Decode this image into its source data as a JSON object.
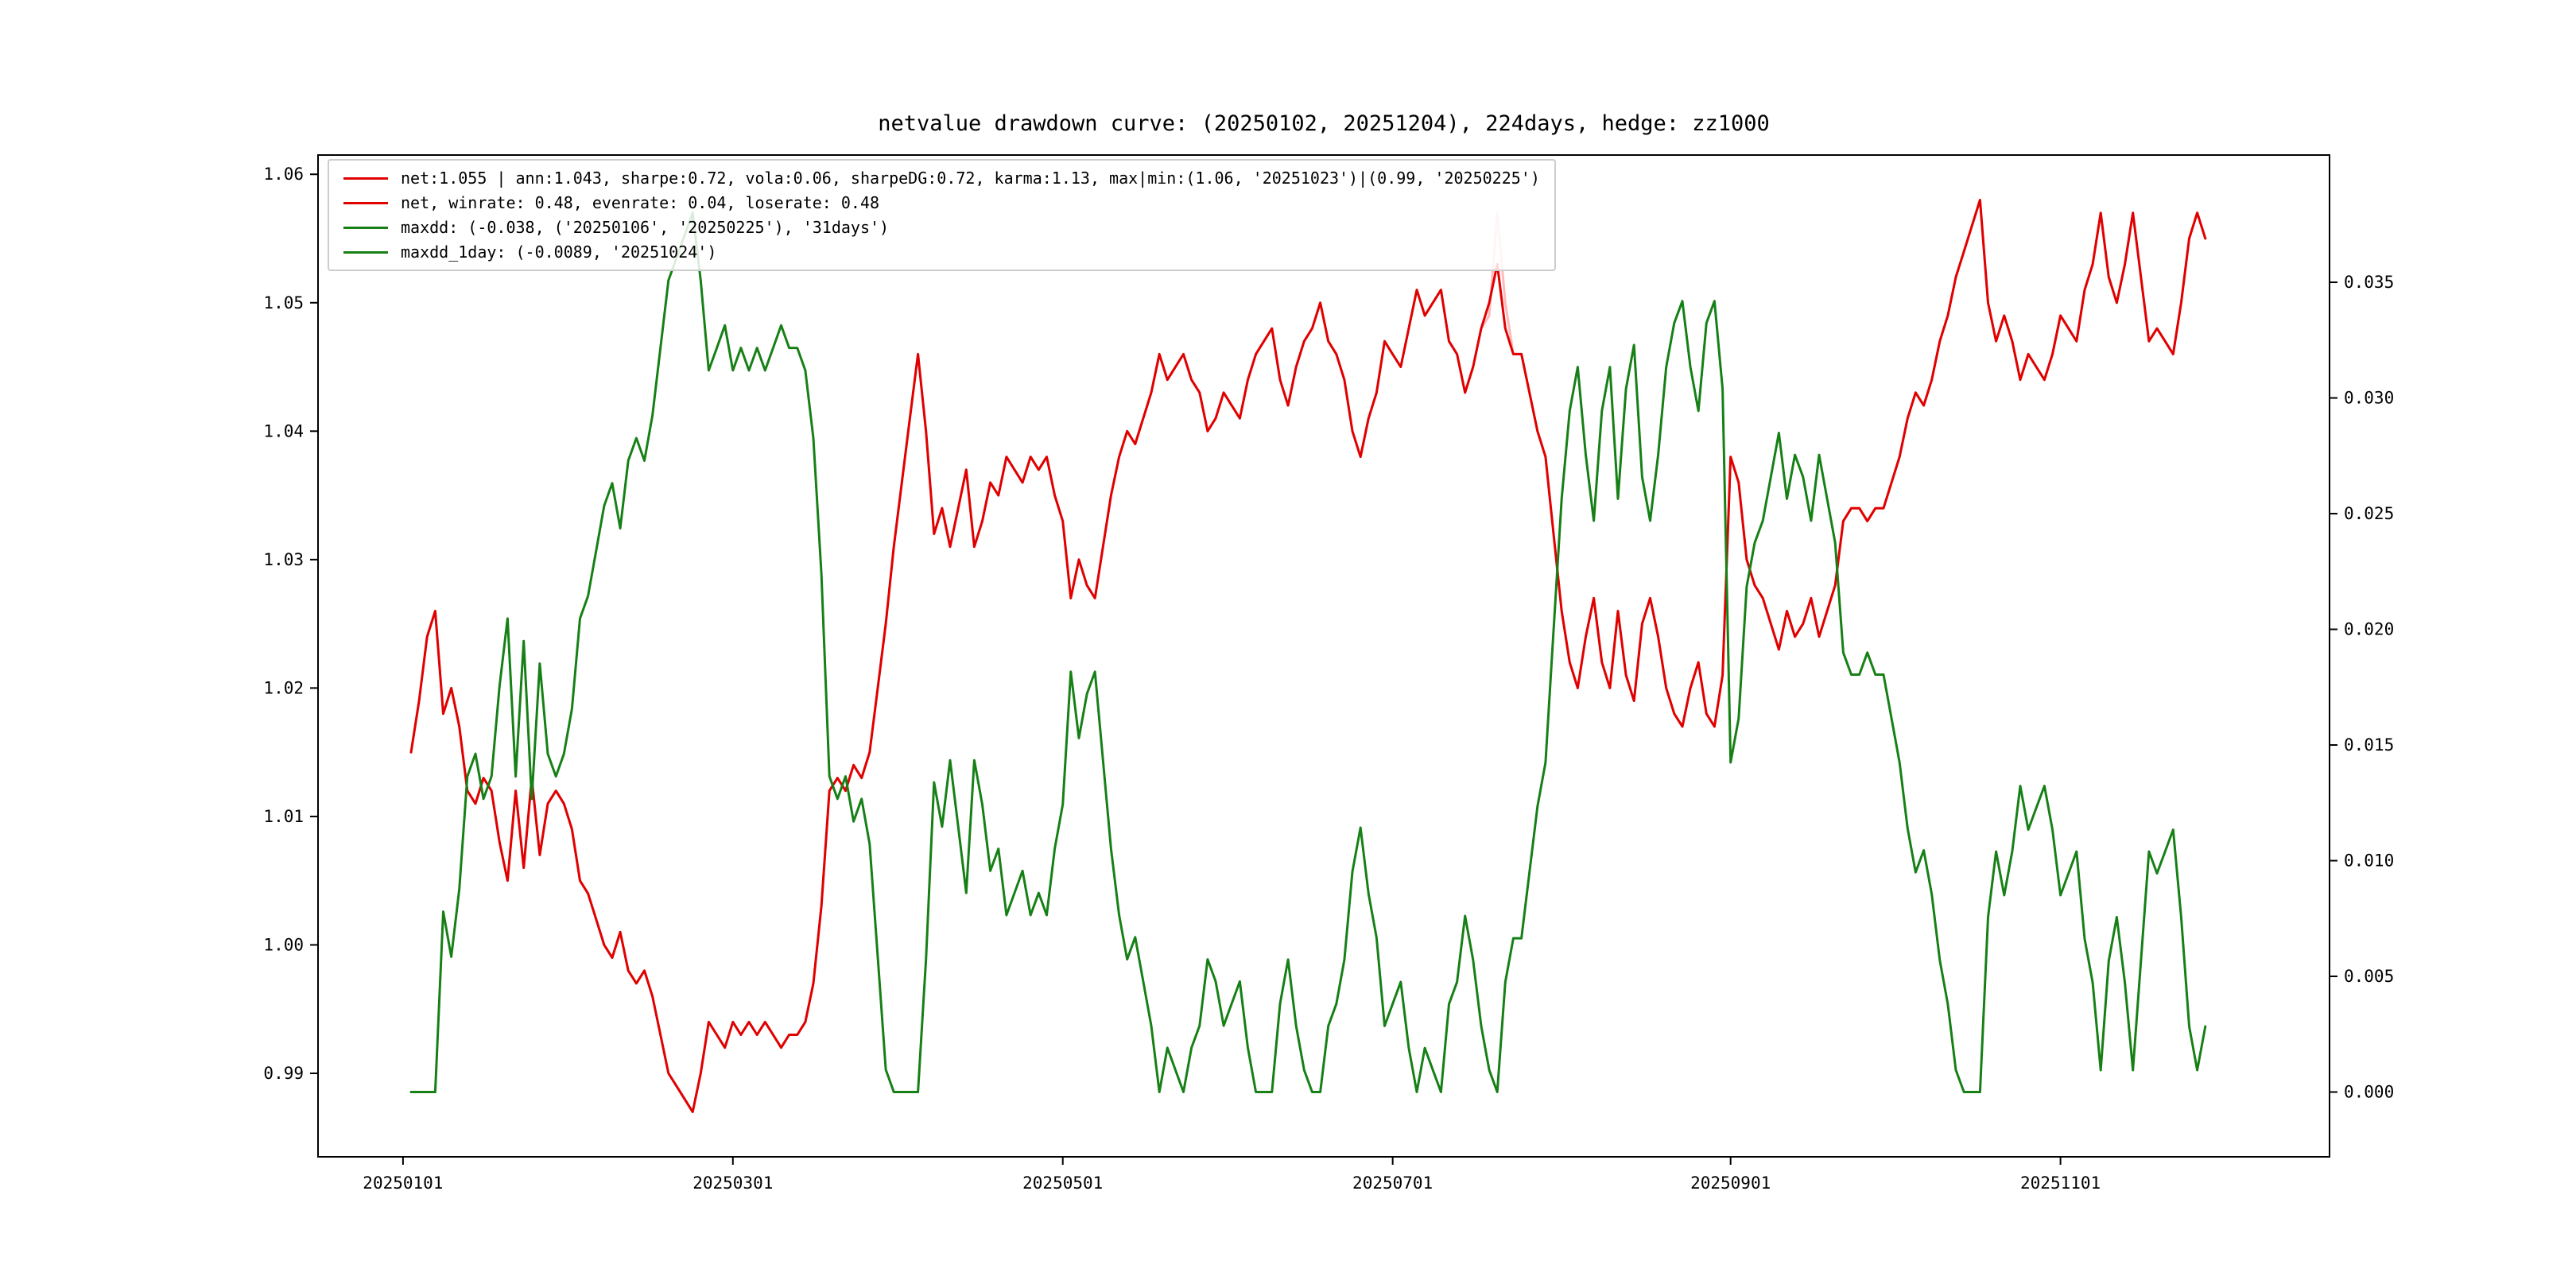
{
  "title": "netvalue drawdown curve: (20250102, 20251204), 224days, hedge: zz1000",
  "colors": {
    "net": "#e00000",
    "net_secondary": "#ffb9b9",
    "drawdown": "#168016",
    "box": "#000000",
    "legend_border": "#cccccc"
  },
  "legend": {
    "position": "upper left",
    "items": [
      {
        "label": "net:1.055 | ann:1.043, sharpe:0.72, vola:0.06, sharpeDG:0.72, karma:1.13, max|min:(1.06, '20251023')|(0.99, '20250225')",
        "color": "#e00000"
      },
      {
        "label": "net, winrate: 0.48, evenrate: 0.04, loserate: 0.48",
        "color": "#e00000"
      },
      {
        "label": "maxdd: (-0.038, ('20250106', '20250225'), '31days')",
        "color": "#168016"
      },
      {
        "label": "maxdd_1day: (-0.0089, '20251024')",
        "color": "#168016"
      }
    ]
  },
  "chart_data": {
    "type": "line",
    "title": "netvalue drawdown curve: (20250102, 20251204), 224days, hedge: zz1000",
    "n_points": 224,
    "date_range": [
      "20250102",
      "20251204"
    ],
    "grid": false,
    "x_ticks": [
      {
        "label": "20250101",
        "day": -1
      },
      {
        "label": "20250301",
        "day": 40
      },
      {
        "label": "20250501",
        "day": 81
      },
      {
        "label": "20250701",
        "day": 122
      },
      {
        "label": "20250901",
        "day": 164
      },
      {
        "label": "20251101",
        "day": 205
      }
    ],
    "left_axis": {
      "ticks": [
        0.99,
        1.0,
        1.01,
        1.02,
        1.03,
        1.04,
        1.05,
        1.06
      ],
      "range": [
        0.9835,
        1.0615
      ],
      "decimals": 2
    },
    "right_axis": {
      "ticks": [
        0.0,
        0.005,
        0.01,
        0.015,
        0.02,
        0.025,
        0.03,
        0.035
      ],
      "range": [
        -0.0028,
        0.0405
      ],
      "decimals": 3
    },
    "series": [
      {
        "name": "net_winrate",
        "axis": "left",
        "color": "#ffb9b9",
        "base": "net",
        "overrides": {
          "134": 1.049,
          "135": 1.057,
          "136": 1.05
        }
      },
      {
        "name": "net",
        "axis": "left",
        "color": "#e00000",
        "values": [
          1.015,
          1.019,
          1.024,
          1.026,
          1.018,
          1.02,
          1.017,
          1.012,
          1.011,
          1.013,
          1.012,
          1.008,
          1.005,
          1.012,
          1.006,
          1.013,
          1.007,
          1.011,
          1.012,
          1.011,
          1.009,
          1.005,
          1.004,
          1.002,
          1.0,
          0.999,
          1.001,
          0.998,
          0.997,
          0.998,
          0.996,
          0.993,
          0.99,
          0.989,
          0.988,
          0.987,
          0.99,
          0.994,
          0.993,
          0.992,
          0.994,
          0.993,
          0.994,
          0.993,
          0.994,
          0.993,
          0.992,
          0.993,
          0.993,
          0.994,
          0.997,
          1.003,
          1.012,
          1.013,
          1.012,
          1.014,
          1.013,
          1.015,
          1.02,
          1.025,
          1.031,
          1.036,
          1.041,
          1.046,
          1.04,
          1.032,
          1.034,
          1.031,
          1.034,
          1.037,
          1.031,
          1.033,
          1.036,
          1.035,
          1.038,
          1.037,
          1.036,
          1.038,
          1.037,
          1.038,
          1.035,
          1.033,
          1.027,
          1.03,
          1.028,
          1.027,
          1.031,
          1.035,
          1.038,
          1.04,
          1.039,
          1.041,
          1.043,
          1.046,
          1.044,
          1.045,
          1.046,
          1.044,
          1.043,
          1.04,
          1.041,
          1.043,
          1.042,
          1.041,
          1.044,
          1.046,
          1.047,
          1.048,
          1.044,
          1.042,
          1.045,
          1.047,
          1.048,
          1.05,
          1.047,
          1.046,
          1.044,
          1.04,
          1.038,
          1.041,
          1.043,
          1.047,
          1.046,
          1.045,
          1.048,
          1.051,
          1.049,
          1.05,
          1.051,
          1.047,
          1.046,
          1.043,
          1.045,
          1.048,
          1.05,
          1.053,
          1.048,
          1.046,
          1.046,
          1.043,
          1.04,
          1.038,
          1.032,
          1.026,
          1.022,
          1.02,
          1.024,
          1.027,
          1.022,
          1.02,
          1.026,
          1.021,
          1.019,
          1.025,
          1.027,
          1.024,
          1.02,
          1.018,
          1.017,
          1.02,
          1.022,
          1.018,
          1.017,
          1.021,
          1.038,
          1.036,
          1.03,
          1.028,
          1.027,
          1.025,
          1.023,
          1.026,
          1.024,
          1.025,
          1.027,
          1.024,
          1.026,
          1.028,
          1.033,
          1.034,
          1.034,
          1.033,
          1.034,
          1.034,
          1.036,
          1.038,
          1.041,
          1.043,
          1.042,
          1.044,
          1.047,
          1.049,
          1.052,
          1.054,
          1.056,
          1.058,
          1.05,
          1.047,
          1.049,
          1.047,
          1.044,
          1.046,
          1.045,
          1.044,
          1.046,
          1.049,
          1.048,
          1.047,
          1.051,
          1.053,
          1.057,
          1.052,
          1.05,
          1.053,
          1.057,
          1.052,
          1.047,
          1.048,
          1.047,
          1.046,
          1.05,
          1.055,
          1.057,
          1.055
        ]
      },
      {
        "name": "maxdd",
        "axis": "right",
        "color": "#168016",
        "derived": "drawdown_from_net",
        "derivation": "drawdown[i] = (cummax(net)[i] - net[i]) / cummax(net)[i]"
      }
    ],
    "stats": {
      "net_final": 1.055,
      "ann": 1.043,
      "sharpe": 0.72,
      "vola": 0.06,
      "sharpeDG": 0.72,
      "karma": 1.13,
      "max": {
        "value": 1.06,
        "date": "20251023"
      },
      "min": {
        "value": 0.99,
        "date": "20250225"
      },
      "winrate": 0.48,
      "evenrate": 0.04,
      "loserate": 0.48,
      "maxdd": {
        "value": -0.038,
        "from": "20250106",
        "to": "20250225",
        "duration": "31days"
      },
      "maxdd_1day": {
        "value": -0.0089,
        "date": "20251024"
      }
    }
  }
}
